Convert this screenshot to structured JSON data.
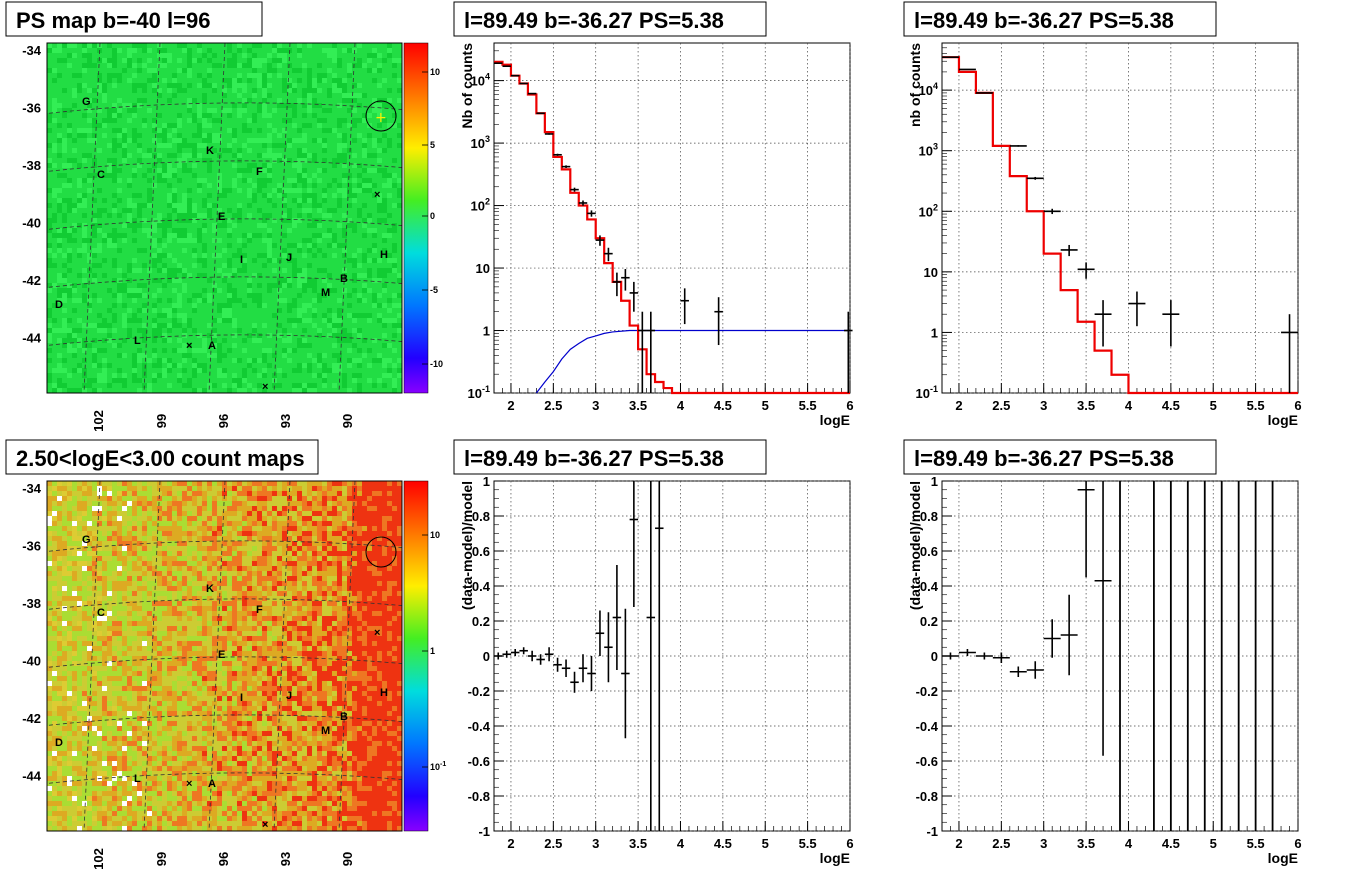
{
  "chart_data": [
    {
      "id": "psmap",
      "type": "heatmap",
      "title": "PS map b=-40 l=96",
      "y_ticks": [
        "-34",
        "-36",
        "-38",
        "-40",
        "-42",
        "-44"
      ],
      "x_ticks": [
        "102",
        "99",
        "96",
        "93",
        "90"
      ],
      "colorbar_ticks": [
        "10",
        "5",
        "0",
        "-5",
        "-10"
      ],
      "source_labels": [
        "G",
        "K",
        "C",
        "F",
        "E",
        "I",
        "J",
        "H",
        "B",
        "M",
        "D",
        "L",
        "A"
      ],
      "colors": {
        "base": "#22dd44",
        "dark": "#11bb33"
      }
    },
    {
      "id": "spectrum_full",
      "type": "line",
      "title": "l=89.49 b=-36.27 PS=5.38",
      "ylabel": "Nb of counts",
      "xlabel": "logE",
      "xlim": [
        1.8,
        6
      ],
      "ylim": [
        0.1,
        40000
      ],
      "y_scale": "log",
      "x_ticks": [
        "2",
        "2.5",
        "3",
        "3.5",
        "4",
        "4.5",
        "5",
        "5.5",
        "6"
      ],
      "y_ticks": [
        "10^4",
        "10^3",
        "10^2",
        "10",
        "1",
        "10^-1"
      ],
      "model_bins": [
        1.8,
        1.9,
        2.0,
        2.1,
        2.2,
        2.3,
        2.4,
        2.5,
        2.6,
        2.7,
        2.8,
        2.9,
        3.0,
        3.1,
        3.2,
        3.3,
        3.4,
        3.5,
        3.6,
        3.7,
        3.8,
        3.9,
        4.0
      ],
      "model_values": [
        20000,
        18000,
        12000,
        9000,
        6000,
        3000,
        1500,
        600,
        380,
        160,
        100,
        60,
        30,
        12,
        6,
        3,
        1.2,
        0.5,
        0.2,
        0.15,
        0.12,
        0.1
      ],
      "data_points": [
        {
          "x": 1.85,
          "y": 19000
        },
        {
          "x": 1.95,
          "y": 17000
        },
        {
          "x": 2.05,
          "y": 12000
        },
        {
          "x": 2.15,
          "y": 9000
        },
        {
          "x": 2.25,
          "y": 6200
        },
        {
          "x": 2.35,
          "y": 3000
        },
        {
          "x": 2.45,
          "y": 1400
        },
        {
          "x": 2.55,
          "y": 650
        },
        {
          "x": 2.65,
          "y": 420
        },
        {
          "x": 2.75,
          "y": 180
        },
        {
          "x": 2.85,
          "y": 110
        },
        {
          "x": 2.95,
          "y": 75
        },
        {
          "x": 3.05,
          "y": 28
        },
        {
          "x": 3.15,
          "y": 17
        },
        {
          "x": 3.25,
          "y": 6
        },
        {
          "x": 3.35,
          "y": 7
        },
        {
          "x": 3.45,
          "y": 4
        },
        {
          "x": 3.55,
          "y": 1
        },
        {
          "x": 3.65,
          "y": 1
        },
        {
          "x": 4.05,
          "y": 3
        },
        {
          "x": 4.45,
          "y": 2
        },
        {
          "x": 5.98,
          "y": 1
        }
      ],
      "blue_curve": [
        {
          "x": 2.3,
          "y": 0.1
        },
        {
          "x": 2.4,
          "y": 0.15
        },
        {
          "x": 2.5,
          "y": 0.22
        },
        {
          "x": 2.6,
          "y": 0.35
        },
        {
          "x": 2.7,
          "y": 0.5
        },
        {
          "x": 2.8,
          "y": 0.62
        },
        {
          "x": 2.9,
          "y": 0.75
        },
        {
          "x": 3.0,
          "y": 0.82
        },
        {
          "x": 3.1,
          "y": 0.9
        },
        {
          "x": 3.2,
          "y": 0.95
        },
        {
          "x": 3.4,
          "y": 1
        },
        {
          "x": 6.0,
          "y": 1
        }
      ],
      "colors": {
        "model": "#ee0000",
        "data": "#000000",
        "blue": "#0000cc"
      }
    },
    {
      "id": "spectrum_coarse",
      "type": "line",
      "title": "l=89.49 b=-36.27 PS=5.38",
      "ylabel": "nb of counts",
      "xlabel": "logE",
      "xlim": [
        1.8,
        6
      ],
      "ylim": [
        0.1,
        60000
      ],
      "y_scale": "log",
      "x_ticks": [
        "2",
        "2.5",
        "3",
        "3.5",
        "4",
        "4.5",
        "5",
        "5.5",
        "6"
      ],
      "y_ticks": [
        "10^4",
        "10^3",
        "10^2",
        "10",
        "1",
        "10^-1"
      ],
      "model_bins": [
        1.8,
        2.0,
        2.2,
        2.4,
        2.6,
        2.8,
        3.0,
        3.2,
        3.4,
        3.6,
        3.8,
        4.0,
        4.2
      ],
      "model_values": [
        35000,
        20000,
        9000,
        1200,
        380,
        100,
        20,
        5,
        1.5,
        0.5,
        0.2,
        0.1
      ],
      "data_points": [
        {
          "x": 1.9,
          "y": 35000
        },
        {
          "x": 2.1,
          "y": 22000
        },
        {
          "x": 2.3,
          "y": 9000
        },
        {
          "x": 2.7,
          "y": 1200
        },
        {
          "x": 2.9,
          "y": 350
        },
        {
          "x": 3.1,
          "y": 100
        },
        {
          "x": 3.3,
          "y": 23
        },
        {
          "x": 3.5,
          "y": 11
        },
        {
          "x": 3.7,
          "y": 2
        },
        {
          "x": 4.1,
          "y": 3
        },
        {
          "x": 4.5,
          "y": 2
        },
        {
          "x": 5.9,
          "y": 1
        }
      ],
      "colors": {
        "model": "#ee0000",
        "data": "#000000"
      }
    },
    {
      "id": "countmap",
      "type": "heatmap",
      "title": "2.50<logE<3.00 count maps",
      "y_ticks": [
        "-34",
        "-36",
        "-38",
        "-40",
        "-42",
        "-44"
      ],
      "x_ticks": [
        "102",
        "99",
        "96",
        "93",
        "90"
      ],
      "colorbar_ticks": [
        "10",
        "1",
        "10^-1"
      ],
      "source_labels": [
        "G",
        "K",
        "C",
        "F",
        "E",
        "I",
        "J",
        "H",
        "B",
        "M",
        "D",
        "L",
        "A"
      ]
    },
    {
      "id": "residual_full",
      "type": "scatter",
      "title": "l=89.49 b=-36.27 PS=5.38",
      "ylabel": "(data-model)/model",
      "xlabel": "logE",
      "xlim": [
        1.8,
        6
      ],
      "ylim": [
        -1,
        1
      ],
      "x_ticks": [
        "2",
        "2.5",
        "3",
        "3.5",
        "4",
        "4.5",
        "5",
        "5.5",
        "6"
      ],
      "y_ticks": [
        "1",
        "0.8",
        "0.6",
        "0.4",
        "0.2",
        "0",
        "-0.2",
        "-0.4",
        "-0.6",
        "-0.8",
        "-1"
      ],
      "points": [
        {
          "x": 1.85,
          "y": 0,
          "e": 0.02
        },
        {
          "x": 1.95,
          "y": 0.01,
          "e": 0.02
        },
        {
          "x": 2.05,
          "y": 0.02,
          "e": 0.02
        },
        {
          "x": 2.15,
          "y": 0.03,
          "e": 0.02
        },
        {
          "x": 2.25,
          "y": 0.0,
          "e": 0.03
        },
        {
          "x": 2.35,
          "y": -0.02,
          "e": 0.03
        },
        {
          "x": 2.45,
          "y": 0.01,
          "e": 0.04
        },
        {
          "x": 2.55,
          "y": -0.05,
          "e": 0.04
        },
        {
          "x": 2.65,
          "y": -0.07,
          "e": 0.05
        },
        {
          "x": 2.75,
          "y": -0.15,
          "e": 0.06
        },
        {
          "x": 2.85,
          "y": -0.07,
          "e": 0.08
        },
        {
          "x": 2.95,
          "y": -0.1,
          "e": 0.1
        },
        {
          "x": 3.05,
          "y": 0.13,
          "e": 0.13
        },
        {
          "x": 3.15,
          "y": 0.05,
          "e": 0.2
        },
        {
          "x": 3.25,
          "y": 0.22,
          "e": 0.3
        },
        {
          "x": 3.35,
          "y": -0.1,
          "e": 0.37
        },
        {
          "x": 3.45,
          "y": 0.78,
          "e": 0.5
        },
        {
          "x": 3.65,
          "y": 0.22,
          "e": 1.4
        },
        {
          "x": 3.75,
          "y": 0.73,
          "e": 1.8
        }
      ]
    },
    {
      "id": "residual_coarse",
      "type": "scatter",
      "title": "l=89.49 b=-36.27 PS=5.38",
      "ylabel": "(data-model)/model",
      "xlabel": "logE",
      "xlim": [
        1.8,
        6
      ],
      "ylim": [
        -1,
        1
      ],
      "x_ticks": [
        "2",
        "2.5",
        "3",
        "3.5",
        "4",
        "4.5",
        "5",
        "5.5",
        "6"
      ],
      "y_ticks": [
        "1",
        "0.8",
        "0.6",
        "0.4",
        "0.2",
        "0",
        "-0.2",
        "-0.4",
        "-0.6",
        "-0.8",
        "-1"
      ],
      "points": [
        {
          "x": 1.9,
          "y": 0,
          "e": 0.02
        },
        {
          "x": 2.1,
          "y": 0.02,
          "e": 0.02
        },
        {
          "x": 2.3,
          "y": 0,
          "e": 0.02
        },
        {
          "x": 2.5,
          "y": -0.01,
          "e": 0.03
        },
        {
          "x": 2.7,
          "y": -0.09,
          "e": 0.03
        },
        {
          "x": 2.9,
          "y": -0.08,
          "e": 0.05
        },
        {
          "x": 3.1,
          "y": 0.1,
          "e": 0.11
        },
        {
          "x": 3.3,
          "y": 0.12,
          "e": 0.23
        },
        {
          "x": 3.5,
          "y": 0.95,
          "e": 0.5
        },
        {
          "x": 3.7,
          "y": 0.43,
          "e": 1.0
        }
      ],
      "full_bars_x": [
        3.9,
        4.3,
        4.5,
        4.7,
        4.9,
        5.1,
        5.3,
        5.5,
        5.7
      ]
    }
  ]
}
